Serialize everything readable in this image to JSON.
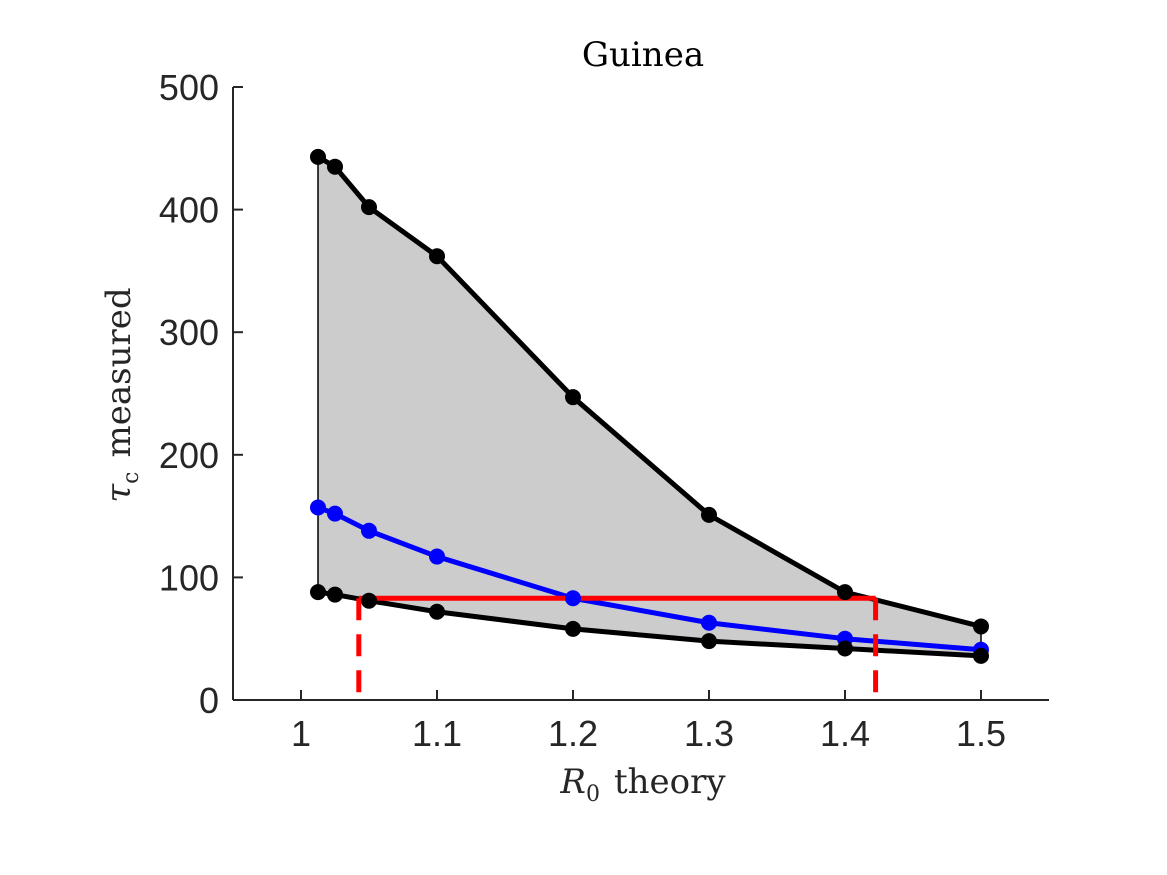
{
  "chart_data": {
    "type": "line",
    "title": "Guinea",
    "xlabel": {
      "symbol": "R",
      "subscript": "0",
      "text": "theory"
    },
    "ylabel": {
      "symbol": "τ",
      "subscript": "c",
      "text": "measured"
    },
    "xlim": [
      0.95,
      1.55
    ],
    "ylim": [
      0,
      500
    ],
    "xticks": [
      1,
      1.1,
      1.2,
      1.3,
      1.4,
      1.5
    ],
    "xtick_labels": [
      "1",
      "1.1",
      "1.2",
      "1.3",
      "1.4",
      "1.5"
    ],
    "yticks": [
      0,
      100,
      200,
      300,
      400,
      500
    ],
    "ytick_labels": [
      "0",
      "100",
      "200",
      "300",
      "400",
      "500"
    ],
    "grid": false,
    "x": [
      1.0125,
      1.025,
      1.05,
      1.1,
      1.2,
      1.3,
      1.4,
      1.5
    ],
    "series": [
      {
        "values": [
          443,
          435,
          402,
          362,
          247,
          151,
          88,
          60
        ],
        "color": "#000000"
      },
      {
        "values": [
          157,
          152,
          138,
          117,
          83,
          63,
          50,
          41
        ],
        "color": "#0000ff"
      },
      {
        "values": [
          88,
          86,
          81,
          72,
          58,
          48,
          42,
          36
        ],
        "color": "#000000"
      }
    ],
    "shaded_region": {
      "between": [
        0,
        2
      ],
      "fill": "#cccccc"
    },
    "threshold": {
      "y": 83,
      "x_range": [
        1.0425,
        1.4225
      ],
      "color": "#ff0000",
      "dashed_drops": [
        1.0425,
        1.4225
      ]
    }
  }
}
